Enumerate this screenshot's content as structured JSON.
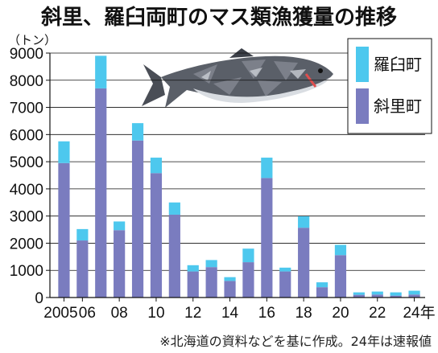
{
  "title": "斜里、羅臼両町のマス類漁獲量の推移",
  "unit_label": "（トン）",
  "note": "※北海道の資料などを基に作成。24年は速報値",
  "colors": {
    "shari": "#7a7cbf",
    "rausu": "#4dc8ee",
    "axis": "#111111",
    "grid": "#111111"
  },
  "chart_data": {
    "type": "bar",
    "stacked": true,
    "title": "斜里、羅臼両町のマス類漁獲量の推移",
    "ylabel": "（トン）",
    "ylim": [
      0,
      9000
    ],
    "yticks": [
      0,
      1000,
      2000,
      3000,
      4000,
      5000,
      6000,
      7000,
      8000,
      9000
    ],
    "ytick_labels": [
      "0",
      "1000",
      "2000",
      "3000",
      "4000",
      "5000",
      "6000",
      "7000",
      "8000",
      "9000"
    ],
    "categories": [
      "2005",
      "2006",
      "2007",
      "2008",
      "2009",
      "2010",
      "2011",
      "2012",
      "2013",
      "2014",
      "2015",
      "2016",
      "2017",
      "2018",
      "2019",
      "2020",
      "2021",
      "2022",
      "2023",
      "2024"
    ],
    "xtick_labels": [
      {
        "index": 0,
        "label": "2005"
      },
      {
        "index": 1,
        "label": "06"
      },
      {
        "index": 3,
        "label": "08"
      },
      {
        "index": 5,
        "label": "10"
      },
      {
        "index": 7,
        "label": "12"
      },
      {
        "index": 9,
        "label": "14"
      },
      {
        "index": 11,
        "label": "16"
      },
      {
        "index": 13,
        "label": "18"
      },
      {
        "index": 15,
        "label": "20"
      },
      {
        "index": 17,
        "label": "22"
      },
      {
        "index": 19,
        "label": "24年"
      }
    ],
    "series": [
      {
        "name": "斜里町",
        "values": [
          4950,
          2100,
          7700,
          2480,
          5780,
          4580,
          3050,
          960,
          1120,
          610,
          1300,
          4400,
          960,
          2570,
          380,
          1560,
          100,
          110,
          70,
          110
        ]
      },
      {
        "name": "羅臼町",
        "values": [
          800,
          420,
          1200,
          320,
          640,
          570,
          450,
          230,
          260,
          140,
          500,
          750,
          140,
          420,
          180,
          380,
          90,
          110,
          120,
          140
        ]
      }
    ],
    "legend": {
      "position": "top-right",
      "order": [
        "羅臼町",
        "斜里町"
      ]
    },
    "grid": true
  }
}
